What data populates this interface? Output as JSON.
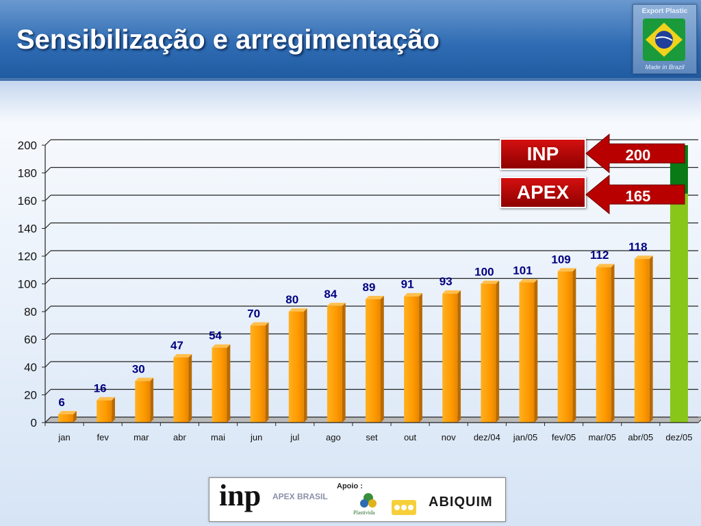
{
  "slide": {
    "title": "Sensibilização e arregimentação"
  },
  "logo": {
    "top_text": "Export Plastic",
    "bottom_text": "Made in Brazil"
  },
  "sponsors": {
    "inp": "inp",
    "apex": "APEX BRASIL",
    "apoio": "Apoio :",
    "plastivida": "Plastivida",
    "abiquim": "ABIQUIM"
  },
  "colors": {
    "bar": "#ff9a00",
    "bar_side": "#b86a00",
    "bar_top": "#ffbf4d",
    "target_green": "#88c61a",
    "target_dark_green": "#0a7a14",
    "legend_red": "#b80000",
    "value_label": "#000080"
  },
  "chart_data": {
    "type": "bar",
    "categories": [
      "jan",
      "fev",
      "mar",
      "abr",
      "mai",
      "jun",
      "jul",
      "ago",
      "set",
      "out",
      "nov",
      "dez/04",
      "jan/05",
      "fev/05",
      "mar/05",
      "abr/05",
      "dez/05"
    ],
    "values": [
      6,
      16,
      30,
      47,
      54,
      70,
      80,
      84,
      89,
      91,
      93,
      100,
      101,
      109,
      112,
      118,
      null
    ],
    "target_bar": {
      "category": "dez/05",
      "segments": [
        {
          "label": "APEX",
          "value": 165,
          "color": "#88c61a"
        },
        {
          "label": "INP",
          "value": 200,
          "color": "#0a7a14"
        }
      ]
    },
    "annotations": [
      {
        "label": "INP",
        "value": 200
      },
      {
        "label": "APEX",
        "value": 165
      }
    ],
    "ylim": [
      0,
      200
    ],
    "yticks": [
      0,
      20,
      40,
      60,
      80,
      100,
      120,
      140,
      160,
      180,
      200
    ],
    "grid": true,
    "xlabel": "",
    "ylabel": ""
  }
}
